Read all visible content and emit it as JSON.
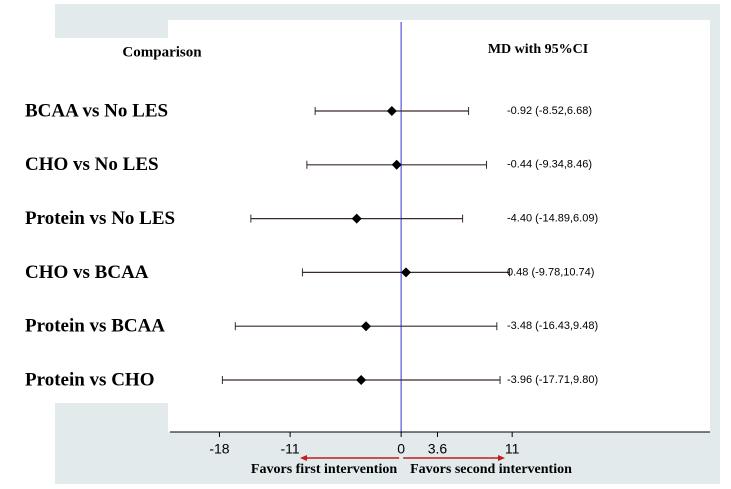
{
  "chart_data": {
    "type": "forest",
    "column_headers": [
      "Comparison",
      "MD with 95%CI"
    ],
    "categories": [
      "BCAA vs No LES",
      "CHO vs No LES",
      "Protein vs No LES",
      "CHO vs BCAA",
      "Protein vs BCAA",
      "Protein vs CHO"
    ],
    "values": [
      -0.92,
      -0.44,
      -4.4,
      0.48,
      -3.48,
      -3.96
    ],
    "lower": [
      -8.52,
      -9.34,
      -14.89,
      -9.78,
      -16.43,
      -17.71
    ],
    "upper": [
      6.68,
      8.46,
      6.09,
      10.74,
      9.48,
      9.8
    ],
    "value_labels": [
      "-0.92 (-8.52,6.68)",
      "-0.44 (-9.34,8.46)",
      "-4.40 (-14.89,6.09)",
      "0.48 (-9.78,10.74)",
      "-3.48 (-16.43,9.48)",
      "-3.96 (-17.71,9.80)"
    ],
    "xlim": [
      -22.9,
      30.6
    ],
    "xticks": [
      -18,
      -11,
      0,
      3.6,
      11
    ],
    "favors_labels": [
      "Favors first intervention",
      "Favors second intervention"
    ],
    "color": "#000000",
    "ci_color": "#3a2a2a",
    "ref_line_color": "#5555dd",
    "arrow_color": "#c0201a"
  }
}
